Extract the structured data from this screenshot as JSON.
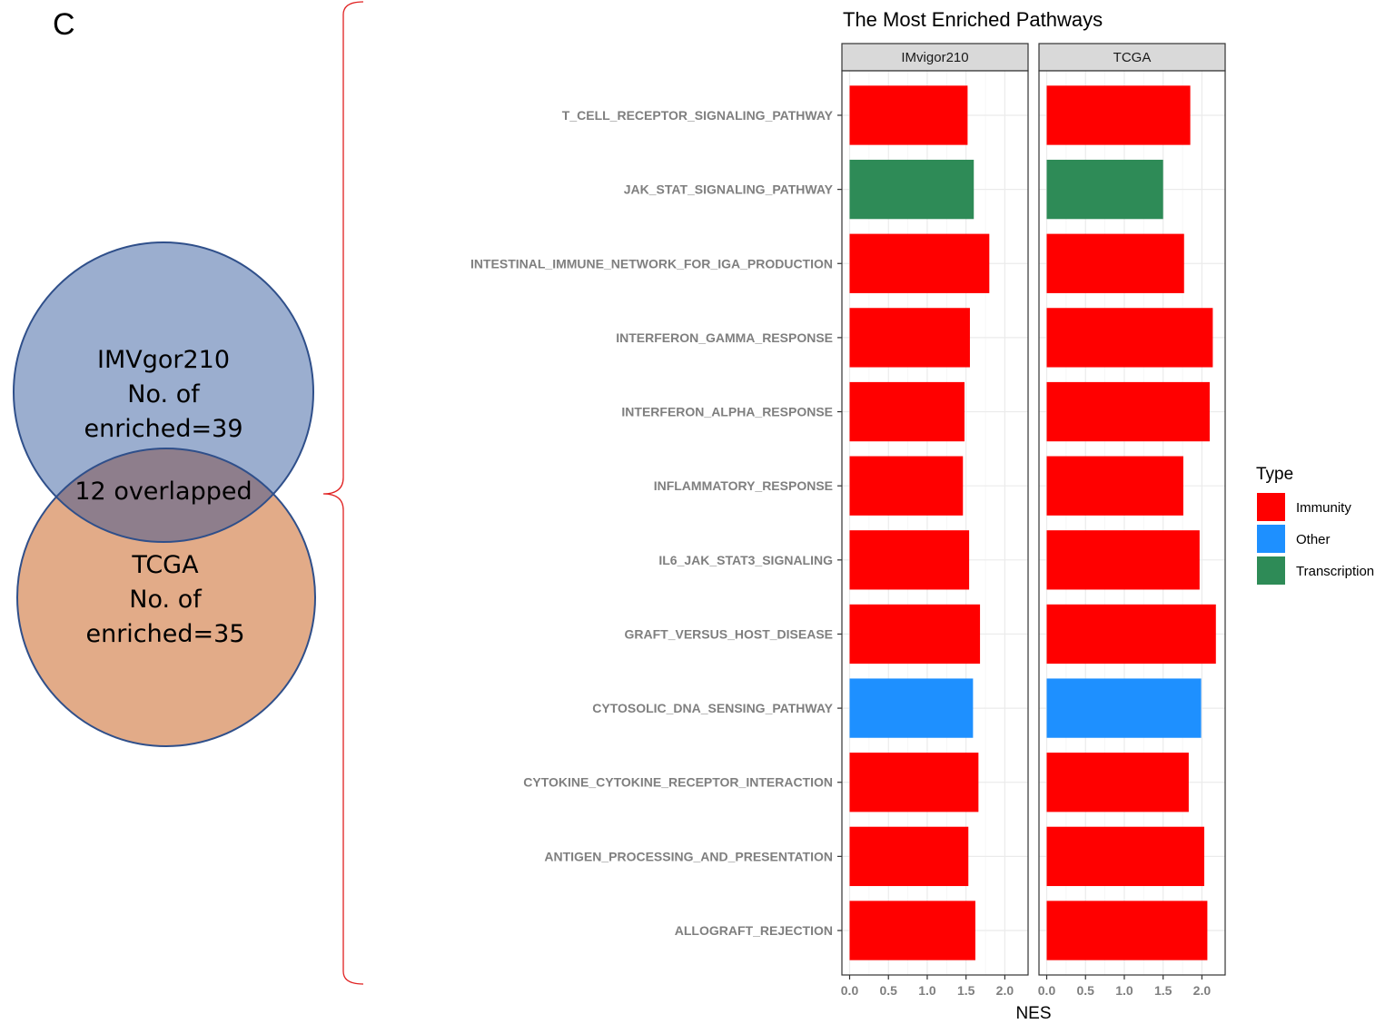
{
  "panel_letter": "C",
  "venn": {
    "set_a": {
      "name": "IMVgor210",
      "line1": "No. of",
      "line2": "enriched=39",
      "color": "#9baecf"
    },
    "set_b": {
      "name": "TCGA",
      "line1": "No. of",
      "line2": "enriched=35",
      "color": "#e2ab88"
    },
    "overlap_label": "12 overlapped",
    "overlap_color": "#8e7e8c",
    "outline_color": "#2f4f8a",
    "brace_color": "#e02020"
  },
  "chart_data": {
    "type": "bar",
    "orientation": "horizontal",
    "title": "The Most Enriched Pathways",
    "xlabel": "NES",
    "ylabel": "",
    "xlim": [
      0,
      2.2
    ],
    "x_ticks": [
      "0.0",
      "0.5",
      "1.0",
      "1.5",
      "2.0"
    ],
    "grid": true,
    "legend": {
      "title": "Type",
      "position": "right"
    },
    "types": [
      {
        "name": "Immunity",
        "color": "#ff0000"
      },
      {
        "name": "Other",
        "color": "#1e90ff"
      },
      {
        "name": "Transcription",
        "color": "#2e8b57"
      }
    ],
    "categories": [
      "T_CELL_RECEPTOR_SIGNALING_PATHWAY",
      "JAK_STAT_SIGNALING_PATHWAY",
      "INTESTINAL_IMMUNE_NETWORK_FOR_IGA_PRODUCTION",
      "INTERFERON_GAMMA_RESPONSE",
      "INTERFERON_ALPHA_RESPONSE",
      "INFLAMMATORY_RESPONSE",
      "IL6_JAK_STAT3_SIGNALING",
      "GRAFT_VERSUS_HOST_DISEASE",
      "CYTOSOLIC_DNA_SENSING_PATHWAY",
      "CYTOKINE_CYTOKINE_RECEPTOR_INTERACTION",
      "ANTIGEN_PROCESSING_AND_PRESENTATION",
      "ALLOGRAFT_REJECTION"
    ],
    "category_types": [
      "Immunity",
      "Transcription",
      "Immunity",
      "Immunity",
      "Immunity",
      "Immunity",
      "Immunity",
      "Immunity",
      "Other",
      "Immunity",
      "Immunity",
      "Immunity"
    ],
    "panels": [
      {
        "name": "IMvigor210",
        "values": [
          1.52,
          1.6,
          1.8,
          1.55,
          1.48,
          1.46,
          1.54,
          1.68,
          1.59,
          1.66,
          1.53,
          1.62
        ]
      },
      {
        "name": "TCGA",
        "values": [
          1.85,
          1.5,
          1.77,
          2.14,
          2.1,
          1.76,
          1.97,
          2.18,
          1.99,
          1.83,
          2.03,
          2.07
        ]
      }
    ]
  }
}
